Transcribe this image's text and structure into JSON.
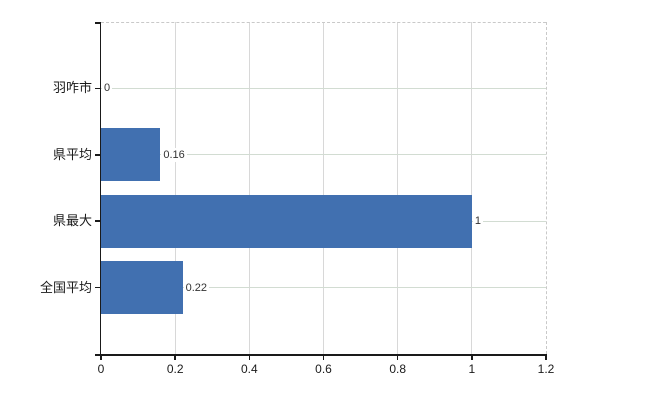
{
  "chart_data": {
    "type": "bar",
    "orientation": "horizontal",
    "title": "",
    "xlabel": "",
    "ylabel": "",
    "categories": [
      "羽咋市",
      "県平均",
      "県最大",
      "全国平均"
    ],
    "values": [
      0,
      0.16,
      1,
      0.22
    ],
    "value_labels": [
      "0",
      "0.16",
      "1",
      "0.22"
    ],
    "xlim": [
      0,
      1.2
    ],
    "x_ticks": [
      0,
      0.2,
      0.4,
      0.6,
      0.8,
      1,
      1.2
    ],
    "x_tick_labels": [
      "0",
      "0.2",
      "0.4",
      "0.6",
      "0.8",
      "1",
      "1.2"
    ],
    "grid": true,
    "legend": false,
    "colors": {
      "bar": "#4170b0",
      "axis": "#1a1a1a",
      "grid_horizontal": "#d2dcd2",
      "grid_vertical": "#d8d8d8",
      "border_dashed": "#c9c9c9",
      "tick_text": "#1a1a1a",
      "value_text": "#333333",
      "background": "#ffffff"
    }
  }
}
